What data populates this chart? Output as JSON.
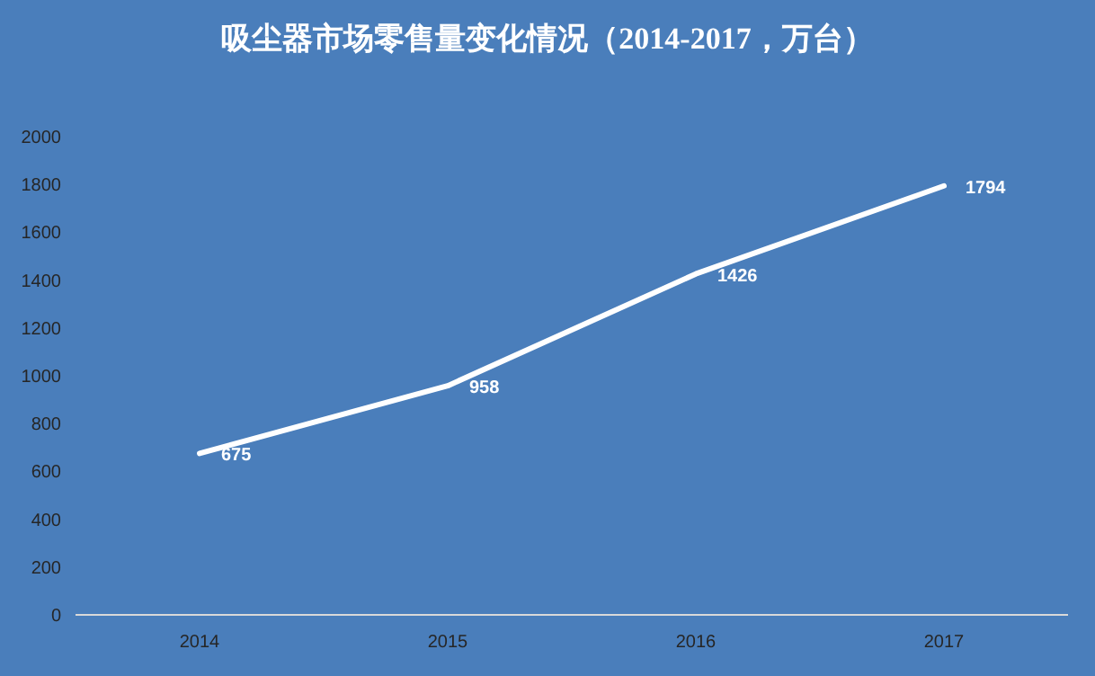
{
  "chart_data": {
    "type": "line",
    "title": "吸尘器市场零售量变化情况（2014-2017，万台）",
    "categories": [
      "2014",
      "2015",
      "2016",
      "2017"
    ],
    "series": [
      {
        "color": "#ffffff",
        "values": [
          675,
          958,
          1426,
          1794
        ]
      }
    ],
    "ylim": [
      0,
      2000
    ],
    "yticks": [
      0,
      200,
      400,
      600,
      800,
      1000,
      1200,
      1400,
      1600,
      1800,
      2000
    ],
    "data_labels": true,
    "grid": false,
    "marker": "none",
    "line_style": "solid"
  }
}
